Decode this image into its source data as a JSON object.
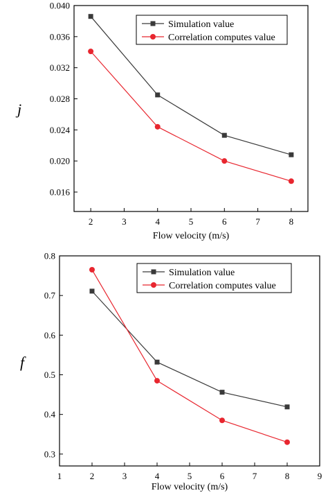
{
  "chart_data": [
    {
      "type": "line",
      "xlabel": "Flow velocity (m/s)",
      "ylabel": "j",
      "xlim": [
        1.5,
        8.5
      ],
      "ylim": [
        0.0135,
        0.04
      ],
      "xticks": [
        2,
        3,
        4,
        5,
        6,
        7,
        8
      ],
      "yticks": [
        0.016,
        0.02,
        0.024,
        0.028,
        0.032,
        0.036,
        0.04
      ],
      "ytick_labels": [
        "0.016",
        "0.020",
        "0.024",
        "0.028",
        "0.032",
        "0.036",
        "0.040"
      ],
      "x": [
        2,
        4,
        6,
        8
      ],
      "series": [
        {
          "name": "Simulation value",
          "marker": "square",
          "color": "#3a3a3a",
          "values": [
            0.0386,
            0.0285,
            0.0233,
            0.0208
          ]
        },
        {
          "name": "Correlation computes value",
          "marker": "circle",
          "color": "#e8262f",
          "values": [
            0.0341,
            0.0244,
            0.02,
            0.0174
          ]
        }
      ],
      "legend": "top-right",
      "grid": false
    },
    {
      "type": "line",
      "xlabel": "Flow velocity (m/s)",
      "ylabel": "f",
      "xlim": [
        1,
        9
      ],
      "ylim": [
        0.27,
        0.8
      ],
      "xticks": [
        1,
        2,
        3,
        4,
        5,
        6,
        7,
        8,
        9
      ],
      "yticks": [
        0.3,
        0.4,
        0.5,
        0.6,
        0.7,
        0.8
      ],
      "ytick_labels": [
        "0.3",
        "0.4",
        "0.5",
        "0.6",
        "0.7",
        "0.8"
      ],
      "x": [
        2,
        4,
        6,
        8
      ],
      "series": [
        {
          "name": "Simulation value",
          "marker": "square",
          "color": "#3a3a3a",
          "values": [
            0.711,
            0.532,
            0.456,
            0.419
          ]
        },
        {
          "name": "Correlation computes value",
          "marker": "circle",
          "color": "#e8262f",
          "values": [
            0.765,
            0.485,
            0.385,
            0.33
          ]
        }
      ],
      "legend": "top-right",
      "grid": false
    }
  ]
}
